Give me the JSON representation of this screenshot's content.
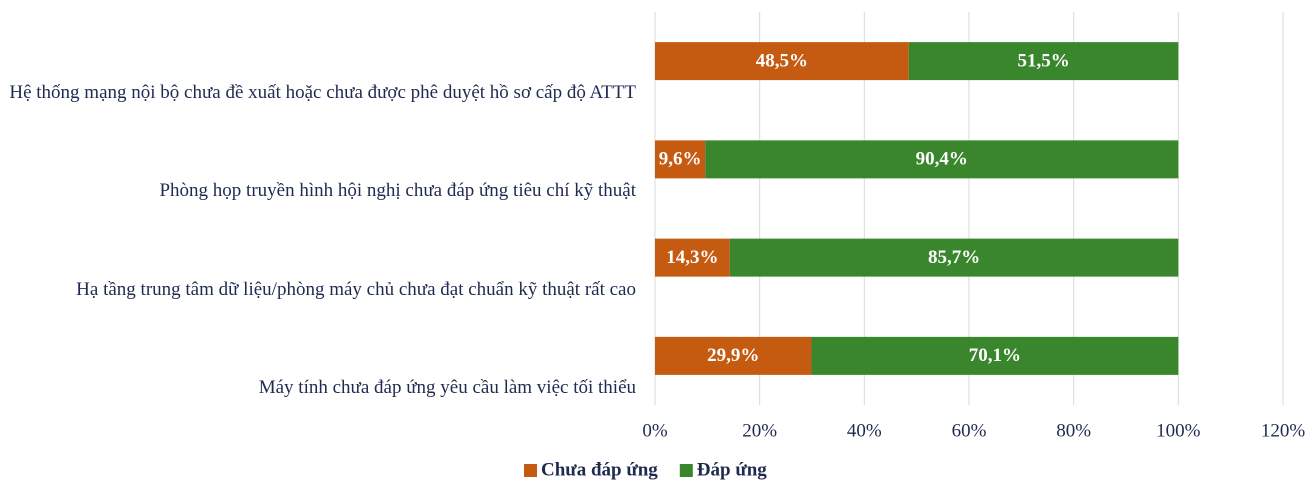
{
  "chart_data": {
    "type": "bar",
    "orientation": "horizontal",
    "stacked": true,
    "categories": [
      "Hệ thống mạng nội bộ chưa đề xuất hoặc chưa được phê duyệt hồ sơ cấp độ ATTT",
      "Phòng họp truyền hình hội nghị chưa đáp ứng tiêu chí kỹ thuật",
      "Hạ tầng trung tâm dữ liệu/phòng máy chủ chưa đạt chuẩn kỹ thuật rất cao",
      "Máy tính chưa đáp ứng yêu cầu làm việc tối thiểu"
    ],
    "series": [
      {
        "name": "Chưa đáp ứng",
        "color": "#c55a11",
        "values": [
          48.5,
          9.6,
          14.3,
          29.9
        ],
        "value_labels": [
          "48,5%",
          "9,6%",
          "14,3%",
          "29,9%"
        ]
      },
      {
        "name": "Đáp ứng",
        "color": "#3a862d",
        "values": [
          51.5,
          90.4,
          85.7,
          70.1
        ],
        "value_labels": [
          "51,5%",
          "90,4%",
          "85,7%",
          "70,1%"
        ]
      }
    ],
    "xlim": [
      0,
      120
    ],
    "xticks": [
      {
        "value": 0,
        "label": "0%"
      },
      {
        "value": 20,
        "label": "20%"
      },
      {
        "value": 40,
        "label": "40%"
      },
      {
        "value": 60,
        "label": "60%"
      },
      {
        "value": 80,
        "label": "80%"
      },
      {
        "value": 100,
        "label": "100%"
      },
      {
        "value": 120,
        "label": "120%"
      }
    ],
    "grid": true,
    "legend": "bottom"
  }
}
